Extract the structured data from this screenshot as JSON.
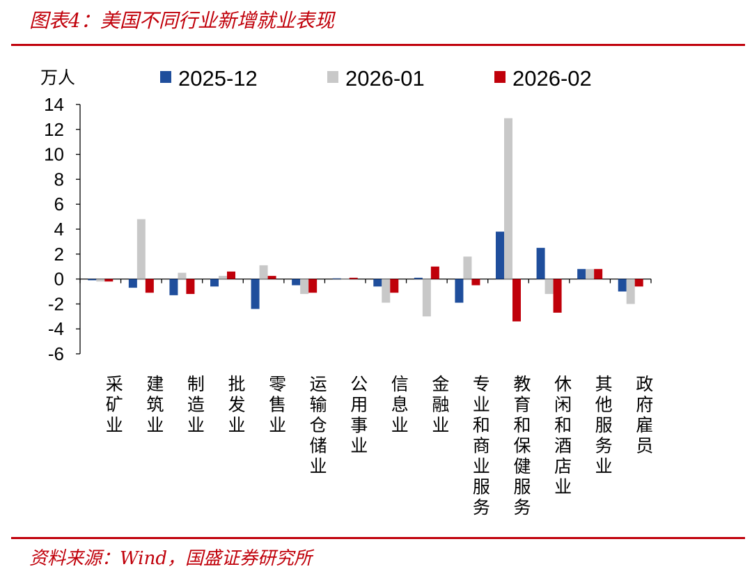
{
  "title": "图表4：美国不同行业新增就业表现",
  "source": "资料来源：Wind，国盛证券研究所",
  "chart_data": {
    "type": "bar",
    "unit_label": "万人",
    "categories": [
      "采矿业",
      "建筑业",
      "制造业",
      "批发业",
      "零售业",
      "运输仓储业",
      "公用事业",
      "信息业",
      "金融业",
      "专业和商业服务",
      "教育和保健服务",
      "休闲和酒店业",
      "其他服务业",
      "政府雇员"
    ],
    "series": [
      {
        "name": "2025-12",
        "color": "#1f4e9c",
        "values": [
          -0.1,
          -0.7,
          -1.3,
          -0.6,
          -2.4,
          -0.5,
          0.05,
          -0.6,
          0.1,
          -1.9,
          3.8,
          2.5,
          0.8,
          -1.0
        ]
      },
      {
        "name": "2026-01",
        "color": "#c8c8c8",
        "values": [
          -0.2,
          4.8,
          0.5,
          0.25,
          1.1,
          -1.2,
          0.0,
          -1.9,
          -3.0,
          1.8,
          12.9,
          -1.2,
          0.8,
          -2.0
        ]
      },
      {
        "name": "2026-02",
        "color": "#c0000a",
        "values": [
          -0.2,
          -1.1,
          -1.2,
          0.6,
          0.25,
          -1.1,
          0.1,
          -1.1,
          1.0,
          -0.5,
          -3.4,
          -2.7,
          0.8,
          -0.6
        ]
      }
    ],
    "ylim": [
      -6,
      14
    ],
    "yticks": [
      14,
      12,
      10,
      8,
      6,
      4,
      2,
      0,
      -2,
      -4,
      -6
    ],
    "legend_position": "top",
    "grid": false
  }
}
